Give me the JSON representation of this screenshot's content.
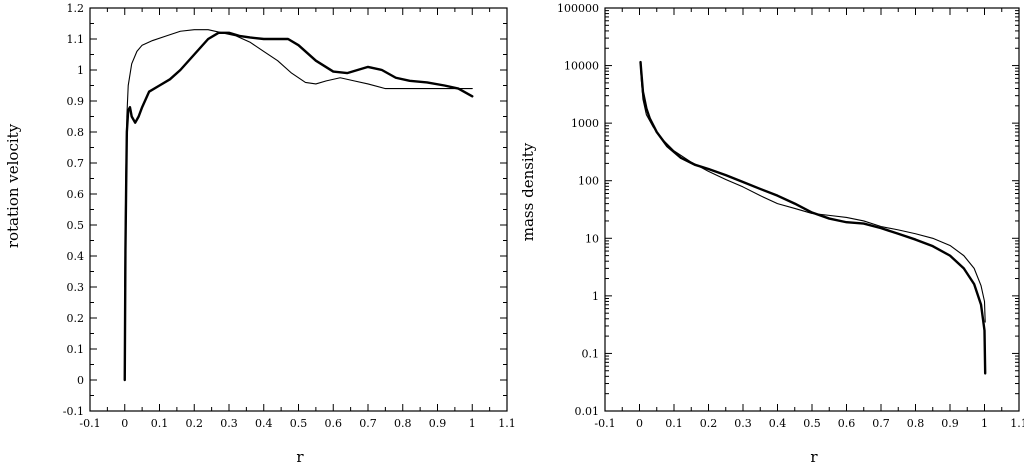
{
  "chart_data": [
    {
      "type": "line",
      "xlabel": "r",
      "ylabel": "rotation velocity",
      "xlim": [
        -0.1,
        1.1
      ],
      "ylim": [
        -0.1,
        1.2
      ],
      "yscale": "linear",
      "x_ticks": [
        "-0.1",
        "0",
        "0.1",
        "0.2",
        "0.3",
        "0.4",
        "0.5",
        "0.6",
        "0.7",
        "0.8",
        "0.9",
        "1",
        "1.1"
      ],
      "y_ticks": [
        "-0.1",
        "0",
        "0.1",
        "0.2",
        "0.3",
        "0.4",
        "0.5",
        "0.6",
        "0.7",
        "0.8",
        "0.9",
        "1",
        "1.1",
        "1.2"
      ],
      "grid": false,
      "series": [
        {
          "line_style": "thick",
          "points": [
            [
              0,
              0
            ],
            [
              0.002,
              0.42
            ],
            [
              0.004,
              0.62
            ],
            [
              0.006,
              0.8
            ],
            [
              0.01,
              0.87
            ],
            [
              0.015,
              0.88
            ],
            [
              0.02,
              0.85
            ],
            [
              0.03,
              0.83
            ],
            [
              0.04,
              0.85
            ],
            [
              0.05,
              0.88
            ],
            [
              0.07,
              0.93
            ],
            [
              0.1,
              0.95
            ],
            [
              0.13,
              0.97
            ],
            [
              0.16,
              1.0
            ],
            [
              0.2,
              1.05
            ],
            [
              0.24,
              1.1
            ],
            [
              0.27,
              1.12
            ],
            [
              0.3,
              1.12
            ],
            [
              0.33,
              1.11
            ],
            [
              0.36,
              1.105
            ],
            [
              0.4,
              1.1
            ],
            [
              0.44,
              1.1
            ],
            [
              0.47,
              1.1
            ],
            [
              0.5,
              1.08
            ],
            [
              0.55,
              1.03
            ],
            [
              0.6,
              0.995
            ],
            [
              0.64,
              0.99
            ],
            [
              0.67,
              1.0
            ],
            [
              0.7,
              1.01
            ],
            [
              0.74,
              1.0
            ],
            [
              0.78,
              0.975
            ],
            [
              0.82,
              0.965
            ],
            [
              0.87,
              0.96
            ],
            [
              0.92,
              0.95
            ],
            [
              0.96,
              0.94
            ],
            [
              1.0,
              0.915
            ]
          ]
        },
        {
          "line_style": "thin",
          "points": [
            [
              0,
              0.3
            ],
            [
              0.003,
              0.65
            ],
            [
              0.006,
              0.85
            ],
            [
              0.01,
              0.95
            ],
            [
              0.02,
              1.02
            ],
            [
              0.035,
              1.06
            ],
            [
              0.05,
              1.08
            ],
            [
              0.08,
              1.095
            ],
            [
              0.12,
              1.11
            ],
            [
              0.16,
              1.125
            ],
            [
              0.2,
              1.13
            ],
            [
              0.24,
              1.13
            ],
            [
              0.28,
              1.12
            ],
            [
              0.32,
              1.11
            ],
            [
              0.36,
              1.09
            ],
            [
              0.4,
              1.06
            ],
            [
              0.44,
              1.03
            ],
            [
              0.48,
              0.99
            ],
            [
              0.52,
              0.96
            ],
            [
              0.55,
              0.955
            ],
            [
              0.58,
              0.965
            ],
            [
              0.62,
              0.975
            ],
            [
              0.66,
              0.965
            ],
            [
              0.7,
              0.955
            ],
            [
              0.75,
              0.94
            ],
            [
              0.8,
              0.94
            ],
            [
              0.9,
              0.94
            ],
            [
              1.0,
              0.94
            ]
          ]
        }
      ]
    },
    {
      "type": "line",
      "xlabel": "r",
      "ylabel": "mass density",
      "xlim": [
        -0.1,
        1.1
      ],
      "ylim": [
        0.01,
        100000
      ],
      "yscale": "log",
      "x_ticks": [
        "-0.1",
        "0",
        "0.1",
        "0.2",
        "0.3",
        "0.4",
        "0.5",
        "0.6",
        "0.7",
        "0.8",
        "0.9",
        "1",
        "1.1"
      ],
      "y_ticks": [
        "0.01",
        "0.1",
        "1",
        "10",
        "100",
        "1000",
        "10000",
        "100000"
      ],
      "grid": false,
      "series": [
        {
          "line_style": "thick",
          "points": [
            [
              0.003,
              11500
            ],
            [
              0.005,
              8000
            ],
            [
              0.01,
              3500
            ],
            [
              0.02,
              1800
            ],
            [
              0.03,
              1200
            ],
            [
              0.05,
              700
            ],
            [
              0.08,
              400
            ],
            [
              0.12,
              250
            ],
            [
              0.16,
              190
            ],
            [
              0.2,
              160
            ],
            [
              0.25,
              125
            ],
            [
              0.3,
              95
            ],
            [
              0.35,
              72
            ],
            [
              0.4,
              55
            ],
            [
              0.45,
              40
            ],
            [
              0.5,
              28
            ],
            [
              0.55,
              22
            ],
            [
              0.6,
              19
            ],
            [
              0.65,
              18
            ],
            [
              0.7,
              15
            ],
            [
              0.75,
              12
            ],
            [
              0.8,
              9.5
            ],
            [
              0.85,
              7.3
            ],
            [
              0.9,
              5
            ],
            [
              0.94,
              3
            ],
            [
              0.97,
              1.6
            ],
            [
              0.99,
              0.7
            ],
            [
              1.0,
              0.25
            ],
            [
              1.002,
              0.045
            ]
          ]
        },
        {
          "line_style": "thin",
          "points": [
            [
              0.003,
              9000
            ],
            [
              0.006,
              5000
            ],
            [
              0.01,
              2600
            ],
            [
              0.02,
              1400
            ],
            [
              0.04,
              850
            ],
            [
              0.07,
              500
            ],
            [
              0.1,
              330
            ],
            [
              0.15,
              210
            ],
            [
              0.2,
              145
            ],
            [
              0.25,
              105
            ],
            [
              0.3,
              78
            ],
            [
              0.35,
              55
            ],
            [
              0.4,
              40
            ],
            [
              0.45,
              33
            ],
            [
              0.5,
              27
            ],
            [
              0.55,
              25
            ],
            [
              0.6,
              23
            ],
            [
              0.65,
              20
            ],
            [
              0.7,
              16
            ],
            [
              0.75,
              14
            ],
            [
              0.8,
              12
            ],
            [
              0.85,
              10
            ],
            [
              0.9,
              7.5
            ],
            [
              0.94,
              5
            ],
            [
              0.97,
              3
            ],
            [
              0.99,
              1.5
            ],
            [
              1.0,
              0.8
            ],
            [
              1.002,
              0.35
            ]
          ]
        }
      ]
    }
  ]
}
